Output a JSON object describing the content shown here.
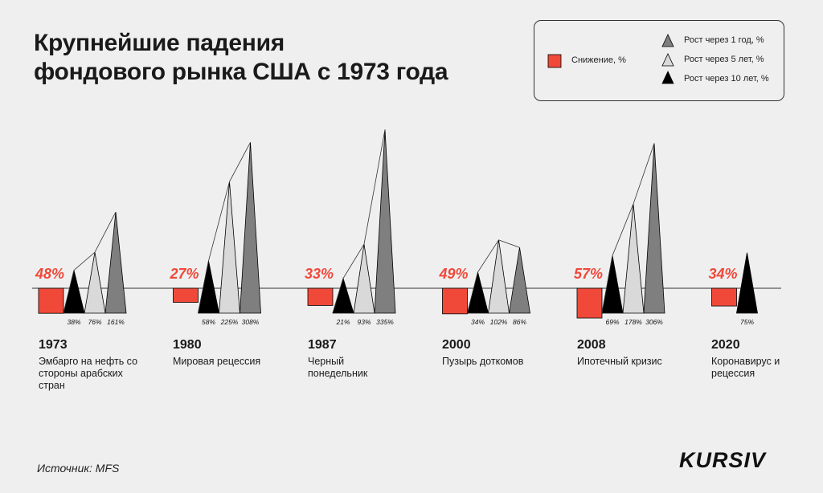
{
  "title_line1": "Крупнейшие падения",
  "title_line2": "фондового рынка США с 1973 года",
  "legend": {
    "decline": "Снижение, %",
    "growth1": "Рост через 1 год, %",
    "growth5": "Рост через 5 лет, %",
    "growth10": "Рост через 10 лет, %"
  },
  "source": "Источник: MFS",
  "logo": "KURSIV",
  "colors": {
    "decline": "#f0493a",
    "growth1": "#7f7f7f",
    "growth5": "#d9d9d9",
    "growth10": "#000000"
  },
  "chart_data": {
    "type": "bar",
    "series_names": [
      "Снижение, %",
      "Рост через 10 лет, %",
      "Рост через 5 лет, %",
      "Рост через 1 год, %"
    ],
    "events": [
      {
        "year": "1973",
        "description": "Эмбарго на нефть со стороны арабских стран",
        "decline": 48,
        "decline_label": "48%",
        "growth10": 38,
        "growth5": 76,
        "growth1": 161,
        "labels": [
          "38%",
          "76%",
          "161%"
        ]
      },
      {
        "year": "1980",
        "description": "Мировая рецессия",
        "decline": 27,
        "decline_label": "27%",
        "growth10": 58,
        "growth5": 225,
        "growth1": 308,
        "labels": [
          "58%",
          "225%",
          "308%"
        ]
      },
      {
        "year": "1987",
        "description": "Черный понедельник",
        "decline": 33,
        "decline_label": "33%",
        "growth10": 21,
        "growth5": 93,
        "growth1": 335,
        "labels": [
          "21%",
          "93%",
          "335%"
        ]
      },
      {
        "year": "2000",
        "description": "Пузырь доткомов",
        "decline": 49,
        "decline_label": "49%",
        "growth10": 34,
        "growth5": 102,
        "growth1": 86,
        "labels": [
          "34%",
          "102%",
          "86%"
        ]
      },
      {
        "year": "2008",
        "description": "Ипотечный кризис",
        "decline": 57,
        "decline_label": "57%",
        "growth10": 69,
        "growth5": 178,
        "growth1": 306,
        "labels": [
          "69%",
          "178%",
          "306%"
        ]
      },
      {
        "year": "2020",
        "description": "Коронавирус и рецессия",
        "decline": 34,
        "decline_label": "34%",
        "growth10": 75,
        "growth5": null,
        "growth1": null,
        "labels": [
          "75%"
        ]
      }
    ]
  }
}
